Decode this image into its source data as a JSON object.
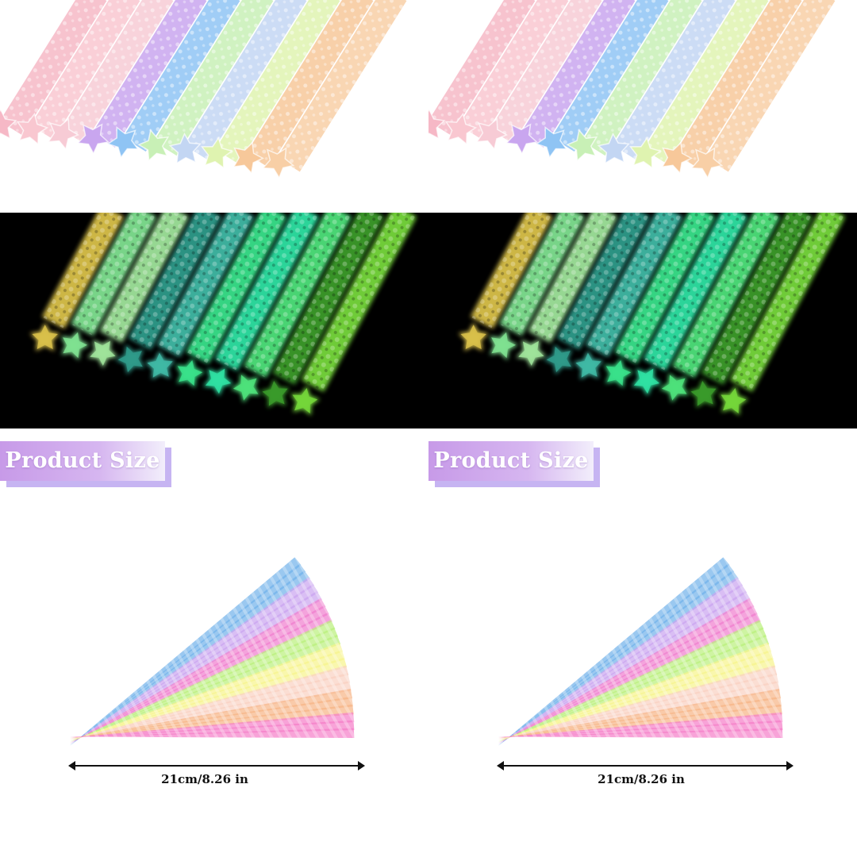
{
  "product_size_label_left": "Product Size",
  "product_size_label_right": "Product Size",
  "dimension_left": "21cm/8.26 in",
  "dimension_right": "21cm/8.26 in",
  "palette": {
    "paper_strips": [
      "#f6b8c6",
      "#f9c7d0",
      "#f7cbd5",
      "#c9a6ef",
      "#8fc4f4",
      "#c8f0b6",
      "#c3d6f3",
      "#dff3b0",
      "#f7c89a",
      "#f8cfa6"
    ],
    "glow_strips": [
      "#d8c04a",
      "#7fe090",
      "#9fe39a",
      "#2f9a89",
      "#3fb8a4",
      "#39e08a",
      "#2fe0a2",
      "#4de07a",
      "#3a9a2a",
      "#74d63a"
    ],
    "fan_strips": [
      "#6fb0ea",
      "#c9a3f0",
      "#f07ccd",
      "#b9f07a",
      "#f7f48a",
      "#f9d0c0",
      "#f6b485",
      "#f57cc8"
    ]
  }
}
